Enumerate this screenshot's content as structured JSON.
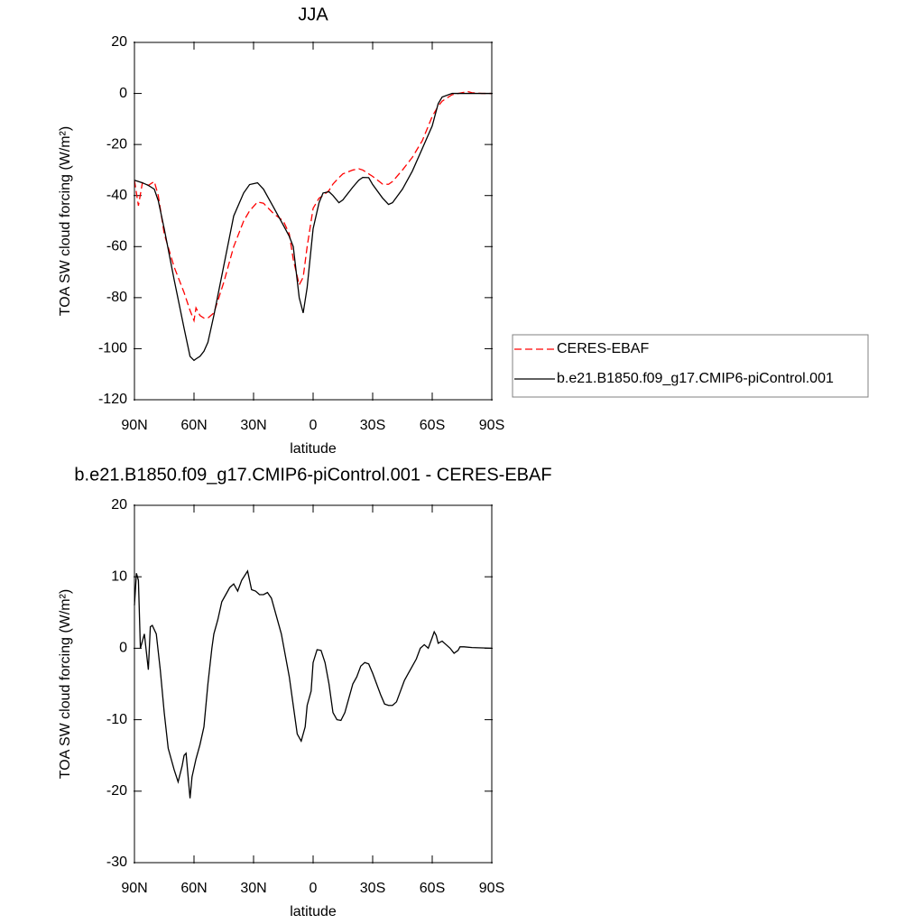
{
  "chart_data": [
    {
      "type": "line",
      "title": "JJA",
      "x_label": "latitude",
      "y_label": "TOA SW cloud forcing (W/m²)",
      "x": [
        90,
        88,
        86,
        83,
        80,
        78,
        75,
        70,
        65,
        62,
        60,
        59,
        57,
        55,
        53,
        50,
        45,
        40,
        35,
        32,
        28,
        25,
        20,
        15,
        12,
        10,
        7,
        5,
        3,
        0,
        -3,
        -5,
        -8,
        -10,
        -13,
        -15,
        -20,
        -23,
        -25,
        -28,
        -30,
        -35,
        -38,
        -40,
        -45,
        -50,
        -55,
        -60,
        -63,
        -65,
        -70,
        -75,
        -78,
        -80,
        -85,
        -90
      ],
      "series": [
        {
          "name": "CERES-EBAF",
          "color": "#ff0000",
          "dashed": true,
          "values": [
            -34,
            -44,
            -35,
            -36,
            -34.5,
            -40,
            -55,
            -68,
            -78,
            -85,
            -89,
            -84,
            -87,
            -88,
            -88,
            -86,
            -74,
            -60,
            -50,
            -46,
            -42.5,
            -43,
            -47,
            -50,
            -55,
            -65,
            -75,
            -72,
            -60,
            -45,
            -41,
            -40,
            -38,
            -35.5,
            -33,
            -31.5,
            -30,
            -29.5,
            -30,
            -31.5,
            -32.5,
            -35.5,
            -35.6,
            -34.5,
            -30,
            -25,
            -18.5,
            -9,
            -5,
            -3,
            -0.5,
            0.3,
            0.7,
            0.3,
            0,
            0
          ]
        },
        {
          "name": "b.e21.B1850.f09_g17.CMIP6-piControl.001",
          "color": "#000000",
          "dashed": false,
          "values": [
            -34,
            -34.5,
            -35,
            -36,
            -37.5,
            -42,
            -53,
            -73,
            -92,
            -103,
            -104.6,
            -104,
            -103,
            -101,
            -97.5,
            -87,
            -67.5,
            -48,
            -39,
            -35.7,
            -35,
            -37.5,
            -44.5,
            -51.6,
            -56,
            -60,
            -80,
            -86,
            -76,
            -53,
            -42.8,
            -39,
            -38.5,
            -40,
            -42.8,
            -41.7,
            -36.7,
            -34,
            -32.9,
            -33,
            -35.7,
            -41,
            -43.5,
            -42.8,
            -37.5,
            -30.4,
            -21.6,
            -12.7,
            -4,
            -1.4,
            0,
            0,
            0,
            0,
            0,
            0
          ]
        }
      ],
      "xlim": [
        90,
        -90
      ],
      "xticks": [
        {
          "value": 90,
          "label": "90N"
        },
        {
          "value": 60,
          "label": "60N"
        },
        {
          "value": 30,
          "label": "30N"
        },
        0,
        {
          "value": -30,
          "label": "30S"
        },
        {
          "value": -60,
          "label": "60S"
        },
        {
          "value": -90,
          "label": "90S"
        }
      ],
      "ylim": [
        -120,
        20
      ],
      "yticks": [
        20,
        0,
        -20,
        -40,
        -60,
        -80,
        -100,
        -120
      ],
      "legend": "right"
    },
    {
      "type": "line",
      "title": "b.e21.B1850.f09_g17.CMIP6-piControl.001 - CERES-EBAF",
      "x_label": "latitude",
      "y_label": "TOA SW cloud forcing (W/m²)",
      "x": [
        90,
        89,
        88,
        87,
        85,
        83,
        82,
        81,
        79,
        77,
        75,
        73,
        70,
        68,
        66,
        65,
        64,
        62,
        61,
        59,
        57,
        55,
        53,
        51,
        50,
        48,
        46,
        44,
        42,
        40,
        38,
        36,
        33,
        31,
        29,
        27,
        25,
        23,
        21,
        19,
        16,
        14,
        12,
        10,
        8,
        6,
        4,
        3,
        1,
        0,
        -2,
        -4,
        -6,
        -8,
        -10,
        -12,
        -14,
        -16,
        -18,
        -20,
        -22,
        -24,
        -26,
        -28,
        -30,
        -32,
        -34,
        -36,
        -38,
        -40,
        -42,
        -44,
        -46,
        -48,
        -50,
        -52,
        -54,
        -56,
        -58,
        -60,
        -61,
        -62,
        -63,
        -65,
        -67,
        -69,
        -71,
        -73,
        -74,
        -76,
        -80,
        -90
      ],
      "values": [
        6,
        10.5,
        9.5,
        0,
        2,
        -3,
        3,
        3.2,
        2,
        -3,
        -9,
        -14,
        -17,
        -18.7,
        -16.5,
        -15,
        -14.7,
        -21,
        -18,
        -15.5,
        -13.5,
        -11,
        -5,
        0,
        2,
        4,
        6.5,
        7.5,
        8.5,
        9,
        8,
        9.5,
        10.8,
        8.2,
        8,
        7.5,
        7.5,
        7.8,
        7,
        5,
        2,
        -1,
        -4,
        -8,
        -12,
        -13,
        -11,
        -8,
        -6,
        -2,
        -0.2,
        -0.3,
        -2,
        -5,
        -9,
        -10,
        -10.1,
        -9,
        -7,
        -5,
        -4,
        -2.5,
        -2,
        -2.2,
        -3.5,
        -5,
        -6.5,
        -7.8,
        -8,
        -8,
        -7.5,
        -6,
        -4.5,
        -3.5,
        -2.5,
        -1.5,
        0,
        0.5,
        0,
        1.5,
        2.3,
        1.8,
        0.7,
        1,
        0.5,
        0,
        -0.7,
        -0.3,
        0.2,
        0.2,
        0.1,
        0
      ],
      "color": "#000000",
      "xlim": [
        90,
        -90
      ],
      "xticks": [
        {
          "value": 90,
          "label": "90N"
        },
        {
          "value": 60,
          "label": "60N"
        },
        {
          "value": 30,
          "label": "30N"
        },
        0,
        {
          "value": -30,
          "label": "30S"
        },
        {
          "value": -60,
          "label": "60S"
        },
        {
          "value": -90,
          "label": "90S"
        }
      ],
      "ylim": [
        -30,
        20
      ],
      "yticks": [
        20,
        10,
        0,
        -10,
        -20,
        -30
      ]
    }
  ]
}
